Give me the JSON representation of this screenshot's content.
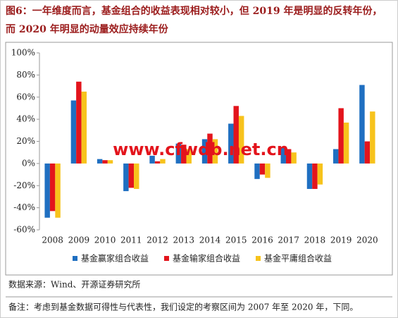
{
  "chart_data": {
    "type": "bar",
    "title": [
      "图6：一年维度而言，基金组合的收益表现相对较小，但 2019 年是明显的反转年份，",
      "而 2020 年明显的动量效应持续年份"
    ],
    "watermark": "www.cfwdb.net.cn",
    "source": "数据来源：Wind、开源证券研究所",
    "note": "备注：考虑到基金数据可得性与代表性，我们设定的考察区间为 2007 年至 2020 年，下同。",
    "categories": [
      "2008",
      "2009",
      "2010",
      "2011",
      "2012",
      "2013",
      "2014",
      "2015",
      "2016",
      "2017",
      "2018",
      "2019",
      "2020"
    ],
    "series": [
      {
        "name": "基金赢家组合收益",
        "color": "#1f6fc1",
        "values": [
          -49,
          57,
          4,
          -25,
          7,
          18,
          22,
          36,
          -14,
          15,
          -23,
          13,
          71
        ]
      },
      {
        "name": "基金输家组合收益",
        "color": "#e3141c",
        "values": [
          -43,
          74,
          3,
          -22,
          2,
          17,
          27,
          52,
          -10,
          13,
          -23,
          50,
          20
        ]
      },
      {
        "name": "基金平庸组合收益",
        "color": "#f7c31c",
        "values": [
          -49,
          65,
          3,
          -23,
          4,
          13,
          22,
          43,
          -13,
          10,
          -19,
          37,
          47
        ]
      }
    ],
    "ylim": [
      -60,
      100
    ],
    "yticks": [
      {
        "value": -60,
        "label": "-60%"
      },
      {
        "value": -40,
        "label": "-40%"
      },
      {
        "value": -20,
        "label": "-20%"
      },
      {
        "value": 0,
        "label": "0%"
      },
      {
        "value": 20,
        "label": "20%"
      },
      {
        "value": 40,
        "label": "40%"
      },
      {
        "value": 60,
        "label": "60%"
      },
      {
        "value": 80,
        "label": "80%"
      },
      {
        "value": 100,
        "label": "100%"
      }
    ],
    "grid": false
  }
}
